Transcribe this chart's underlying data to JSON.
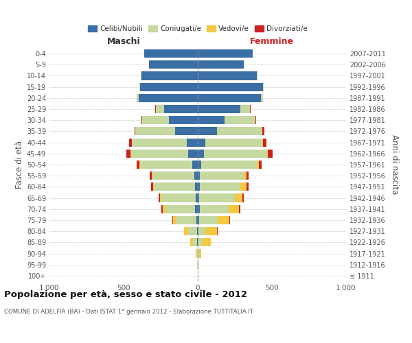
{
  "age_groups": [
    "100+",
    "95-99",
    "90-94",
    "85-89",
    "80-84",
    "75-79",
    "70-74",
    "65-69",
    "60-64",
    "55-59",
    "50-54",
    "45-49",
    "40-44",
    "35-39",
    "30-34",
    "25-29",
    "20-24",
    "15-19",
    "10-14",
    "5-9",
    "0-4"
  ],
  "birth_years": [
    "≤ 1911",
    "1912-1916",
    "1917-1921",
    "1922-1926",
    "1927-1931",
    "1932-1936",
    "1937-1941",
    "1942-1946",
    "1947-1951",
    "1952-1956",
    "1957-1961",
    "1962-1966",
    "1967-1971",
    "1972-1976",
    "1977-1981",
    "1982-1986",
    "1987-1991",
    "1992-1996",
    "1997-2001",
    "2002-2006",
    "2007-2011"
  ],
  "males": {
    "celibi": [
      0,
      0,
      1,
      3,
      5,
      10,
      18,
      15,
      20,
      22,
      35,
      65,
      75,
      155,
      195,
      225,
      400,
      390,
      380,
      330,
      360
    ],
    "coniugati": [
      1,
      4,
      8,
      28,
      60,
      140,
      200,
      230,
      275,
      285,
      355,
      385,
      368,
      265,
      185,
      58,
      14,
      4,
      2,
      0,
      0
    ],
    "vedovi": [
      0,
      2,
      5,
      18,
      28,
      18,
      18,
      9,
      4,
      3,
      2,
      2,
      0,
      0,
      0,
      0,
      0,
      0,
      0,
      0,
      0
    ],
    "divorziati": [
      0,
      0,
      0,
      0,
      0,
      5,
      10,
      10,
      14,
      14,
      18,
      28,
      18,
      8,
      4,
      2,
      0,
      0,
      0,
      0,
      0
    ]
  },
  "females": {
    "nubili": [
      0,
      0,
      0,
      2,
      4,
      8,
      12,
      10,
      14,
      14,
      24,
      42,
      52,
      128,
      182,
      285,
      425,
      440,
      400,
      310,
      370
    ],
    "coniugate": [
      1,
      2,
      7,
      28,
      48,
      128,
      198,
      238,
      275,
      295,
      375,
      425,
      385,
      305,
      205,
      68,
      14,
      4,
      2,
      0,
      0
    ],
    "vedove": [
      0,
      4,
      18,
      58,
      78,
      78,
      68,
      52,
      38,
      18,
      14,
      7,
      4,
      2,
      1,
      1,
      0,
      0,
      0,
      0,
      0
    ],
    "divorziate": [
      0,
      0,
      0,
      0,
      2,
      4,
      9,
      9,
      14,
      14,
      18,
      32,
      22,
      12,
      4,
      2,
      0,
      0,
      0,
      0,
      0
    ]
  },
  "colors": {
    "celibi": "#3a6ea5",
    "coniugati": "#c5d8a0",
    "vedovi": "#f5c842",
    "divorziati": "#cc2222"
  },
  "legend_labels": [
    "Celibi/Nubili",
    "Coniugati/e",
    "Vedovi/e",
    "Divorziati/e"
  ],
  "title": "Popolazione per età, sesso e stato civile - 2012",
  "subtitle": "COMUNE DI ADELFIA (BA) - Dati ISTAT 1° gennaio 2012 - Elaborazione TUTTITALIA.IT",
  "xlabel_left": "Maschi",
  "xlabel_right": "Femmine",
  "ylabel_left": "Fasce di età",
  "ylabel_right": "Anni di nascita",
  "xlim": 1000,
  "bg_color": "#ffffff",
  "grid_color": "#cccccc",
  "bar_height": 0.75
}
